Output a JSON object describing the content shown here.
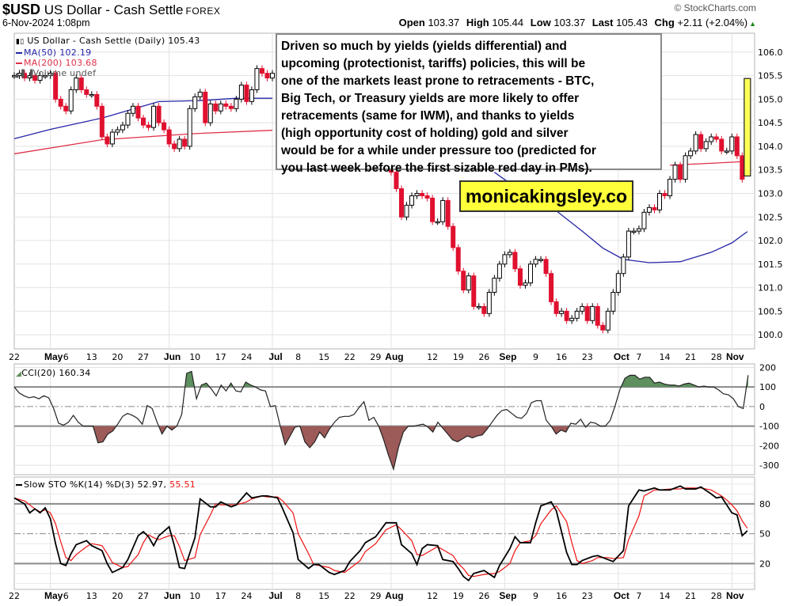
{
  "header": {
    "symbol": "$USD",
    "name": "US Dollar - Cash Settle",
    "exchange": "FOREX",
    "datetime": "6-Nov-2024 1:08pm",
    "copyright": "© StockCharts.com",
    "stats": [
      {
        "label": "Open",
        "value": "103.37"
      },
      {
        "label": "High",
        "value": "105.44"
      },
      {
        "label": "Low",
        "value": "103.37"
      },
      {
        "label": "Last",
        "value": "105.43"
      },
      {
        "label": "Chg",
        "value": "+2.11 (+2.04%)"
      }
    ],
    "change_arrow": "▲",
    "change_color": "#1a8a1a"
  },
  "annotation": {
    "lines": [
      "Driven so much by yields (yields differential) and",
      "upcoming (protectionist, tariffs) policies, this will be",
      "one of the markets least prone to retracements - BTC,",
      "Big Tech, or Treasury yields are more likely to offer",
      "retracements (same for IWM), and thanks to yields",
      "(high opportunity cost of holding) gold and silver",
      "would be for a while under pressure too (predicted for",
      "you last week before the first sizable red day in PMs)."
    ]
  },
  "watermark": "monicakingsley.co",
  "date_axis": [
    {
      "t": "22",
      "day": 0
    },
    {
      "t": "May",
      "day": 7,
      "month": true
    },
    {
      "t": "6",
      "day": 10
    },
    {
      "t": "13",
      "day": 15
    },
    {
      "t": "20",
      "day": 20
    },
    {
      "t": "27",
      "day": 25
    },
    {
      "t": "Jun",
      "day": 30,
      "month": true
    },
    {
      "t": "10",
      "day": 35
    },
    {
      "t": "17",
      "day": 40
    },
    {
      "t": "24",
      "day": 45
    },
    {
      "t": "Jul",
      "day": 50,
      "month": true
    },
    {
      "t": "8",
      "day": 55
    },
    {
      "t": "15",
      "day": 60
    },
    {
      "t": "22",
      "day": 65
    },
    {
      "t": "29",
      "day": 70
    },
    {
      "t": "Aug",
      "day": 73,
      "month": true
    },
    {
      "t": "12",
      "day": 81
    },
    {
      "t": "19",
      "day": 86
    },
    {
      "t": "26",
      "day": 91
    },
    {
      "t": "Sep",
      "day": 95,
      "month": true
    },
    {
      "t": "9",
      "day": 101
    },
    {
      "t": "16",
      "day": 106
    },
    {
      "t": "23",
      "day": 111
    },
    {
      "t": "Oct",
      "day": 117,
      "month": true
    },
    {
      "t": "7",
      "day": 121
    },
    {
      "t": "14",
      "day": 126
    },
    {
      "t": "21",
      "day": 131
    },
    {
      "t": "28",
      "day": 136
    },
    {
      "t": "Nov",
      "day": 139,
      "month": true
    }
  ],
  "chart_data": [
    {
      "type": "candlestick",
      "legend": {
        "title": "US Dollar - Cash Settle (Daily) 105.43",
        "ma50_label": "MA(50) 102.19",
        "ma200_label": "MA(200) 103.68",
        "volume_label": "Volume undef"
      },
      "ylim": [
        99.7,
        106.4
      ],
      "yticks": [
        100.0,
        100.5,
        101.0,
        101.5,
        102.0,
        102.5,
        103.0,
        103.5,
        104.0,
        104.5,
        105.0,
        105.5,
        106.0
      ],
      "grid": true,
      "colors": {
        "up": "#ffffff",
        "down": "#e0102f",
        "ma50": "#2424a8",
        "ma200": "#e03048",
        "highlight": "#ffff55"
      },
      "closes": [
        105.5,
        105.55,
        105.45,
        105.5,
        105.4,
        105.5,
        105.5,
        105.55,
        105.0,
        104.85,
        104.75,
        105.2,
        105.45,
        105.2,
        105.1,
        105.1,
        104.85,
        104.2,
        104.05,
        104.3,
        104.35,
        104.45,
        104.7,
        104.85,
        104.6,
        104.45,
        104.4,
        104.85,
        104.5,
        104.35,
        104.05,
        103.95,
        104.15,
        104.0,
        104.8,
        105.05,
        105.15,
        104.5,
        104.9,
        104.75,
        104.9,
        104.85,
        104.8,
        105.0,
        105.3,
        104.95,
        105.2,
        105.65,
        105.55,
        105.45,
        105.55,
        null,
        null,
        null,
        null,
        null,
        null,
        null,
        null,
        null,
        null,
        null,
        null,
        null,
        null,
        null,
        null,
        null,
        null,
        null,
        null,
        null,
        103.7,
        103.45,
        103.1,
        102.5,
        102.75,
        102.95,
        103.0,
        102.95,
        102.9,
        102.4,
        102.4,
        102.85,
        102.3,
        101.85,
        101.35,
        100.95,
        101.25,
        100.6,
        100.6,
        100.45,
        100.9,
        101.2,
        101.5,
        101.7,
        101.75,
        101.4,
        101.05,
        101.1,
        101.5,
        101.6,
        101.6,
        101.3,
        100.7,
        100.45,
        100.5,
        100.3,
        100.35,
        100.5,
        100.6,
        100.3,
        100.6,
        100.2,
        100.1,
        100.5,
        100.9,
        101.3,
        101.65,
        102.2,
        102.2,
        102.25,
        102.6,
        102.7,
        102.65,
        103.0,
        102.95,
        103.3,
        103.6,
        103.3,
        103.8,
        103.9,
        104.25,
        103.95,
        104.1,
        104.2,
        104.15,
        103.9,
        103.9,
        104.2,
        103.8,
        103.3,
        null
      ],
      "last_candle": {
        "open": 103.37,
        "high": 105.44,
        "low": 103.37,
        "close": 105.43
      },
      "ma50_segments": [
        [
          [
            0,
            104.16
          ],
          [
            7,
            104.36
          ],
          [
            17,
            104.6
          ],
          [
            28,
            104.95
          ],
          [
            36,
            104.97
          ],
          [
            43,
            105.02
          ],
          [
            50,
            105.02
          ]
        ],
        [
          [
            93,
            103.45
          ],
          [
            100,
            102.9
          ],
          [
            105,
            102.63
          ],
          [
            110,
            102.2
          ],
          [
            114,
            101.84
          ],
          [
            118,
            101.6
          ],
          [
            123,
            101.53
          ],
          [
            129,
            101.55
          ],
          [
            135,
            101.75
          ],
          [
            139,
            101.95
          ],
          [
            142,
            102.19
          ]
        ]
      ],
      "ma200_segments": [
        [
          [
            0,
            103.84
          ],
          [
            17,
            104.14
          ],
          [
            35,
            104.27
          ],
          [
            50,
            104.34
          ]
        ],
        [
          [
            127,
            103.6
          ],
          [
            135,
            103.64
          ],
          [
            142,
            103.68
          ]
        ]
      ]
    },
    {
      "type": "line",
      "legend": "CCI(20) 160.34",
      "ylim": [
        -348,
        218
      ],
      "yticks": [
        200,
        100,
        0,
        -100,
        -200,
        -300
      ],
      "thresholds": [
        100,
        -100
      ],
      "colors": {
        "line": "#222222",
        "above": "#5e8f5e",
        "below": "#9c5a58"
      },
      "values": [
        100,
        70,
        55,
        45,
        50,
        40,
        55,
        45,
        -10,
        -85,
        -95,
        -80,
        -45,
        -80,
        -100,
        -100,
        -100,
        -185,
        -180,
        -140,
        -125,
        -90,
        -50,
        -35,
        -45,
        -60,
        -90,
        5,
        -10,
        -80,
        -140,
        -100,
        -120,
        -100,
        -40,
        170,
        180,
        40,
        110,
        120,
        90,
        55,
        110,
        80,
        120,
        80,
        75,
        125,
        110,
        100,
        85,
        80,
        0,
        5,
        -100,
        -195,
        -150,
        -105,
        -100,
        -180,
        -210,
        -180,
        -130,
        -160,
        -115,
        -80,
        -55,
        -50,
        -50,
        -40,
        -5,
        25,
        -70,
        -55,
        -100,
        -170,
        -250,
        -320,
        -210,
        -130,
        -100,
        -100,
        -95,
        -90,
        -105,
        -130,
        -80,
        -110,
        -140,
        -170,
        -180,
        -165,
        -150,
        -160,
        -150,
        -145,
        -115,
        -80,
        -45,
        -20,
        -15,
        -35,
        -55,
        -60,
        -35,
        20,
        30,
        30,
        -70,
        -100,
        -140,
        -120,
        -130,
        -85,
        -90,
        -65,
        -105,
        -80,
        -85,
        -100,
        -100,
        -70,
        5,
        90,
        145,
        160,
        160,
        140,
        150,
        150,
        120,
        125,
        115,
        110,
        110,
        105,
        115,
        120,
        110,
        100,
        105,
        100,
        100,
        85,
        65,
        60,
        40,
        0,
        -10,
        160.34
      ]
    },
    {
      "type": "line",
      "legend": "Slow STO %K(14) %D(3)",
      "k_value": "52.97",
      "d_value": "55.51",
      "ylim": [
        -6,
        107
      ],
      "yticks": [
        80,
        50,
        20
      ],
      "colors": {
        "k": "#000000",
        "d": "#ee1111"
      },
      "day": [
        0,
        2,
        3,
        4,
        5,
        6,
        7,
        8,
        9,
        10,
        11,
        12,
        14,
        15,
        17,
        18,
        19,
        21,
        22,
        24,
        25,
        26,
        27,
        28,
        30,
        31,
        32,
        33,
        35,
        36,
        38,
        39,
        40,
        42,
        43,
        45,
        46,
        48,
        49,
        51,
        52,
        54,
        55,
        57,
        58,
        59,
        61,
        62,
        64,
        65,
        67,
        68,
        70,
        71,
        72,
        74,
        75,
        77,
        78,
        79,
        80,
        82,
        83,
        85,
        86,
        87,
        88,
        89,
        91,
        93,
        94,
        96,
        97,
        98,
        100,
        101,
        102,
        104,
        105,
        107,
        108,
        109,
        110,
        112,
        113,
        115,
        116,
        118,
        119,
        121,
        122,
        124,
        125,
        127,
        129,
        130,
        132,
        133,
        135,
        136,
        137,
        138,
        139,
        140,
        141,
        142
      ],
      "k": [
        86,
        80,
        71,
        75,
        71,
        76,
        65,
        40,
        20,
        18,
        30,
        39,
        43,
        38,
        33,
        20,
        11,
        16,
        24,
        48,
        52,
        47,
        38,
        48,
        57,
        38,
        16,
        15,
        46,
        85,
        77,
        77,
        82,
        77,
        79,
        91,
        86,
        88,
        88,
        86,
        75,
        51,
        24,
        15,
        19,
        19,
        11,
        9,
        13,
        22,
        33,
        41,
        47,
        54,
        61,
        61,
        39,
        30,
        19,
        35,
        39,
        38,
        24,
        22,
        15,
        7,
        3,
        10,
        13,
        6,
        18,
        35,
        47,
        41,
        41,
        61,
        78,
        82,
        73,
        31,
        19,
        19,
        23,
        27,
        28,
        24,
        22,
        33,
        78,
        94,
        93,
        96,
        94,
        94,
        98,
        95,
        95,
        97,
        90,
        86,
        87,
        79,
        71,
        69,
        48,
        52.97
      ],
      "d": [
        86,
        83,
        79,
        75,
        72,
        74,
        71,
        60,
        42,
        26,
        23,
        29,
        37,
        40,
        38,
        30,
        21,
        16,
        17,
        29,
        41,
        49,
        46,
        44,
        48,
        48,
        37,
        23,
        26,
        49,
        69,
        80,
        79,
        79,
        79,
        82,
        85,
        88,
        87,
        87,
        83,
        71,
        50,
        30,
        19,
        18,
        16,
        13,
        11,
        15,
        23,
        32,
        40,
        47,
        54,
        59,
        54,
        43,
        29,
        28,
        31,
        37,
        34,
        28,
        20,
        15,
        8,
        7,
        9,
        10,
        12,
        20,
        33,
        41,
        43,
        48,
        60,
        74,
        78,
        62,
        41,
        23,
        20,
        23,
        26,
        26,
        25,
        26,
        44,
        68,
        88,
        94,
        94,
        95,
        95,
        96,
        96,
        96,
        94,
        91,
        88,
        84,
        79,
        73,
        63,
        55.51
      ]
    }
  ]
}
